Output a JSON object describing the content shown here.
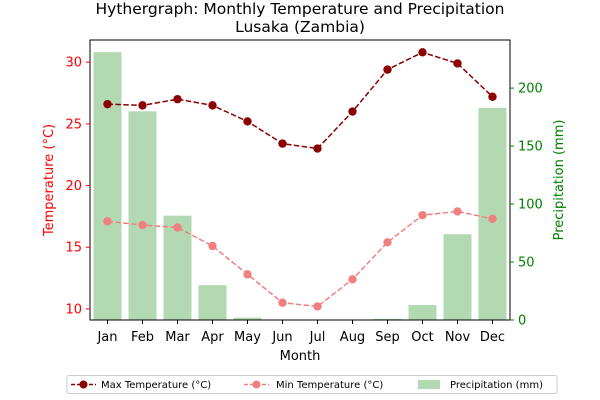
{
  "chart_data": {
    "type": "bar+line",
    "title_line1": "Hythergraph: Monthly Temperature and Precipitation",
    "title_line2": "Lusaka (Zambia)",
    "xlabel": "Month",
    "ylabel_left": "Temperature (°C)",
    "ylabel_right": "Precipitation (mm)",
    "categories": [
      "Jan",
      "Feb",
      "Mar",
      "Apr",
      "May",
      "Jun",
      "Jul",
      "Aug",
      "Sep",
      "Oct",
      "Nov",
      "Dec"
    ],
    "y_left_lim": [
      9.1,
      31.8
    ],
    "y_left_ticks": [
      10,
      15,
      20,
      25,
      30
    ],
    "y_right_lim": [
      0,
      241.5
    ],
    "y_right_ticks": [
      0,
      50,
      100,
      150,
      200
    ],
    "grid": false,
    "legend_position": "bottom",
    "colors": {
      "max_temp": "#8b0000",
      "min_temp": "#f08080",
      "precip": "#b2d9b2",
      "left_axis": "#ff0000",
      "right_axis": "#008000"
    },
    "series": [
      {
        "name": "Max Temperature (°C)",
        "axis": "left",
        "style": "dashed-line-markers",
        "values": [
          26.6,
          26.5,
          27.0,
          26.5,
          25.2,
          23.4,
          23.0,
          26.0,
          29.4,
          30.8,
          29.9,
          27.2
        ]
      },
      {
        "name": "Min Temperature (°C)",
        "axis": "left",
        "style": "dashed-line-markers",
        "values": [
          17.1,
          16.8,
          16.6,
          15.1,
          12.8,
          10.5,
          10.2,
          12.4,
          15.4,
          17.6,
          17.9,
          17.3
        ]
      },
      {
        "name": "Precipitation (mm)",
        "axis": "right",
        "style": "bar",
        "values": [
          231,
          180,
          90,
          30,
          2,
          0,
          0,
          0,
          1,
          13,
          74,
          183
        ]
      }
    ]
  }
}
